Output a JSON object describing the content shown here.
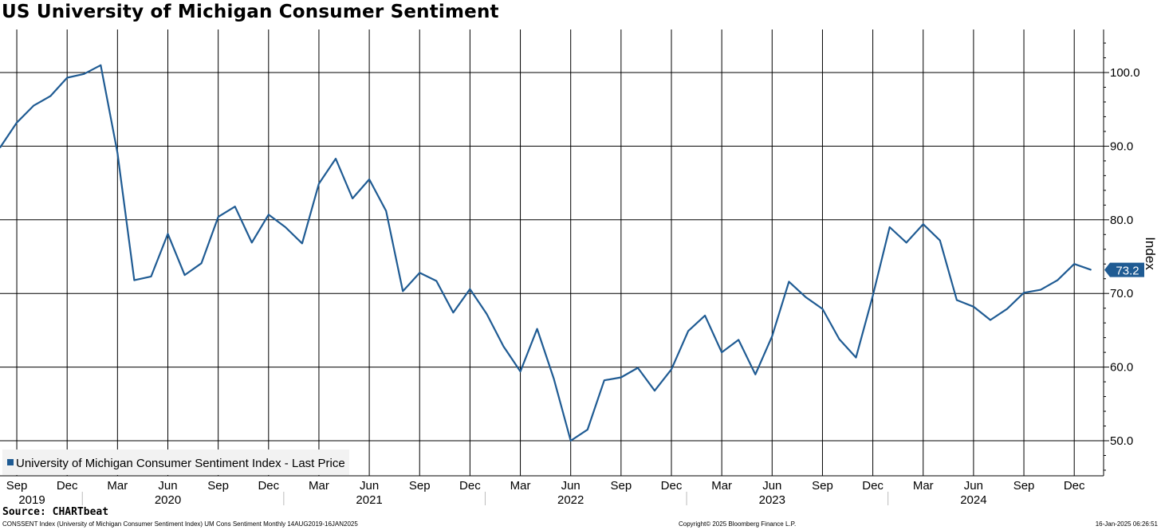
{
  "chart_data": {
    "type": "line",
    "title": "US University of Michigan Consumer Sentiment",
    "ylabel": "Index",
    "ylim": [
      45,
      105
    ],
    "yticks": [
      50,
      60,
      70,
      80,
      90,
      100
    ],
    "ytick_labels": [
      "50.0",
      "60.0",
      "70.0",
      "80.0",
      "90.0",
      "100.0"
    ],
    "grid": true,
    "legend": {
      "placement": "bottom-left",
      "label": "University of Michigan Consumer Sentiment Index - Last Price"
    },
    "last_value_label": "73.2",
    "x_month_labels": [
      "Sep",
      "Dec",
      "Mar",
      "Jun",
      "Sep",
      "Dec",
      "Mar",
      "Jun",
      "Sep",
      "Dec",
      "Mar",
      "Jun",
      "Sep",
      "Dec",
      "Mar",
      "Jun",
      "Sep",
      "Dec",
      "Mar",
      "Jun",
      "Sep",
      "Dec"
    ],
    "x_year_labels": [
      "2019",
      "2020",
      "2021",
      "2022",
      "2023",
      "2024"
    ],
    "start": "Aug 2019",
    "series": [
      {
        "name": "University of Michigan Consumer Sentiment Index - Last Price",
        "color": "#1f5b93",
        "values": [
          89.8,
          93.2,
          95.5,
          96.8,
          99.3,
          99.8,
          101.0,
          89.1,
          71.8,
          72.3,
          78.1,
          72.5,
          74.1,
          80.4,
          81.8,
          76.9,
          80.7,
          79.0,
          76.8,
          84.9,
          88.3,
          82.9,
          85.5,
          81.2,
          70.3,
          72.8,
          71.7,
          67.4,
          70.6,
          67.2,
          62.8,
          59.4,
          65.2,
          58.4,
          50.0,
          51.5,
          58.2,
          58.6,
          59.9,
          56.8,
          59.7,
          64.9,
          67.0,
          62.0,
          63.7,
          59.0,
          64.2,
          71.6,
          69.5,
          67.9,
          63.8,
          61.3,
          69.7,
          79.0,
          76.9,
          79.4,
          77.2,
          69.1,
          68.2,
          66.4,
          67.9,
          70.1,
          70.5,
          71.8,
          74.0,
          73.2
        ]
      }
    ]
  },
  "source": "Source: CHARTbeat",
  "footer": {
    "left": "CONSSENT Index (University of Michigan Consumer Sentiment Index) UM Cons Sentiment  Monthly 14AUG2019-16JAN2025",
    "center": "Copyright© 2025 Bloomberg Finance L.P.",
    "right": "16-Jan-2025 06:26:51"
  }
}
